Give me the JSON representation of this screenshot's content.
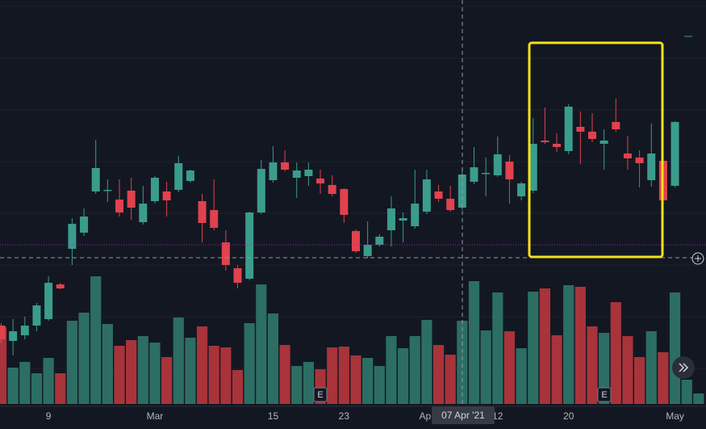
{
  "chart_data": {
    "type": "candlestick",
    "categories": [
      null,
      null,
      null,
      null,
      "9",
      null,
      null,
      null,
      null,
      null,
      null,
      null,
      null,
      "Mar",
      null,
      null,
      null,
      null,
      null,
      null,
      null,
      null,
      null,
      "15",
      null,
      null,
      null,
      null,
      null,
      "23",
      null,
      null,
      null,
      null,
      null,
      null,
      "Apr",
      null,
      null,
      null,
      null,
      null,
      "12",
      null,
      null,
      null,
      null,
      null,
      "20",
      null,
      null,
      null,
      null,
      null,
      null,
      null,
      null,
      "May",
      null,
      null
    ],
    "open": [
      128,
      109,
      116,
      128,
      136,
      179,
      223,
      243,
      294,
      295,
      284,
      295,
      256,
      282,
      294,
      296,
      307,
      282,
      271,
      231,
      199,
      186,
      268,
      308,
      330,
      311,
      313,
      310,
      302,
      297,
      245,
      214,
      228,
      246,
      258,
      251,
      269,
      294,
      285,
      274,
      306,
      316,
      314,
      331,
      288,
      295,
      357,
      353,
      344,
      374,
      368,
      353,
      380,
      341,
      336,
      308,
      332,
      301,
      null,
      null
    ],
    "high": [
      131,
      136,
      139,
      156,
      189,
      181,
      261,
      273,
      358,
      309,
      309,
      311,
      301,
      313,
      306,
      338,
      321,
      291,
      309,
      246,
      203,
      269,
      333,
      350,
      345,
      330,
      330,
      321,
      314,
      298,
      247,
      257,
      241,
      288,
      268,
      321,
      321,
      302,
      301,
      323,
      349,
      336,
      362,
      339,
      306,
      385,
      398,
      366,
      402,
      393,
      391,
      371,
      409,
      363,
      345,
      378,
      335,
      381,
      null,
      null
    ],
    "low": [
      106,
      91,
      111,
      121,
      134,
      173,
      203,
      239,
      291,
      281,
      263,
      259,
      253,
      279,
      263,
      293,
      305,
      231,
      246,
      196,
      174,
      184,
      266,
      305,
      319,
      286,
      301,
      291,
      288,
      255,
      218,
      211,
      226,
      226,
      231,
      248,
      266,
      281,
      269,
      271,
      303,
      288,
      312,
      279,
      283,
      292,
      353,
      343,
      340,
      328,
      355,
      321,
      368,
      321,
      299,
      300,
      281,
      299,
      null,
      null
    ],
    "close": [
      111,
      121,
      128,
      153,
      181,
      174,
      254,
      263,
      323,
      296,
      268,
      274,
      279,
      311,
      283,
      329,
      320,
      255,
      249,
      203,
      181,
      268,
      322,
      330,
      321,
      320,
      321,
      304,
      291,
      265,
      220,
      228,
      238,
      273,
      261,
      279,
      309,
      285,
      271,
      315,
      324,
      317,
      340,
      309,
      304,
      353,
      355,
      349,
      399,
      368,
      359,
      357,
      371,
      335,
      329,
      341,
      283,
      380,
      null,
      null
    ],
    "volume": [
      95,
      45,
      52,
      38,
      57,
      38,
      103,
      113,
      158,
      99,
      72,
      79,
      84,
      76,
      58,
      107,
      82,
      96,
      72,
      70,
      42,
      100,
      148,
      112,
      73,
      47,
      52,
      43,
      70,
      71,
      60,
      57,
      47,
      84,
      69,
      84,
      104,
      73,
      61,
      103,
      152,
      91,
      138,
      90,
      69,
      139,
      143,
      85,
      147,
      145,
      96,
      88,
      126,
      84,
      58,
      90,
      64,
      138,
      30,
      13
    ],
    "ylim": [
      0,
      531
    ],
    "volume_lim": [
      0,
      500
    ],
    "up_color": "#3a9d8b",
    "down_color": "#e0424e",
    "volume_up_color": "#2c6e63",
    "volume_down_color": "#a8333b",
    "crosshair_label": "07 Apr '21",
    "event_markers": [
      "E",
      "E"
    ],
    "highlight_color": "#f5e11a"
  }
}
